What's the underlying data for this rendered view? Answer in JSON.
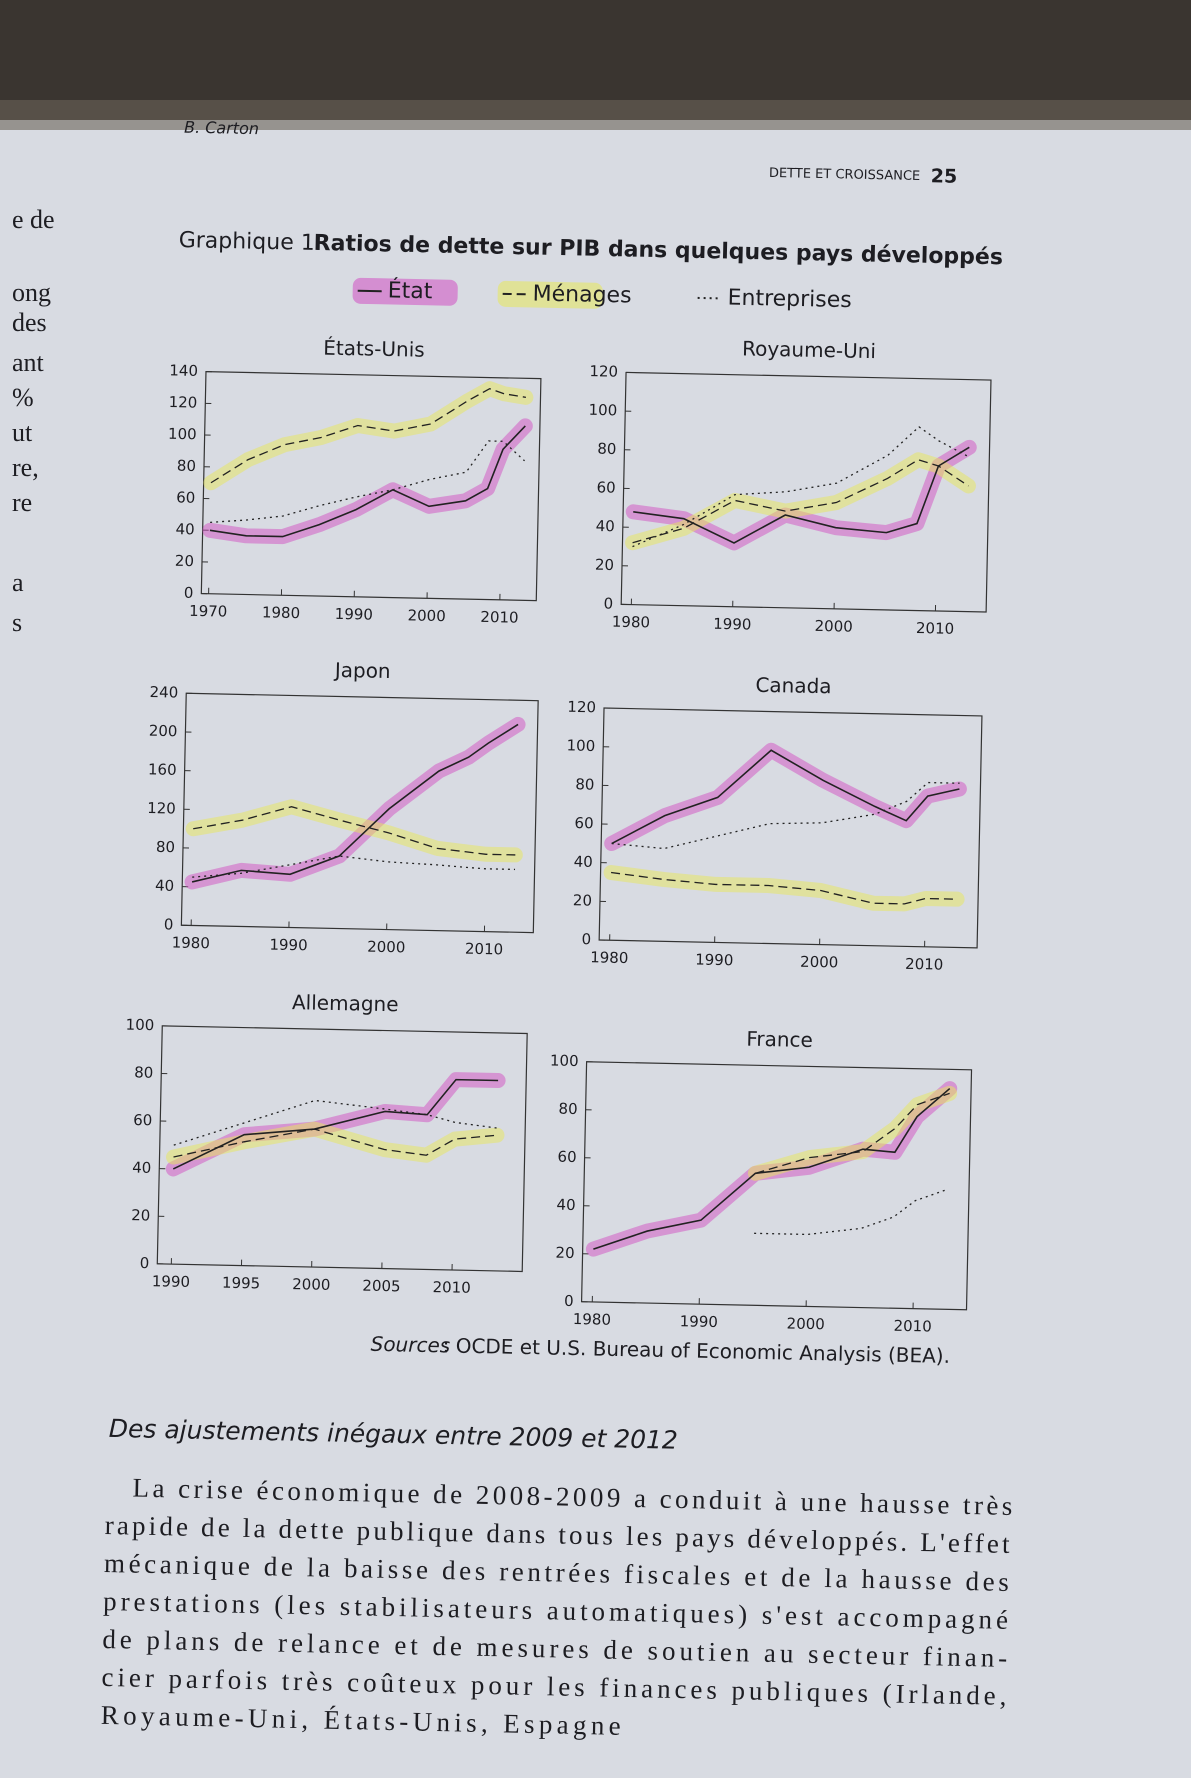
{
  "header": {
    "author": "B. Carton",
    "running_head": "DETTE ET CROISSANCE",
    "page": "25"
  },
  "margin_fragments": [
    "e de",
    "ong",
    "des",
    "ant",
    "%",
    "ut",
    "re,",
    "re",
    "a",
    "s"
  ],
  "figure": {
    "label": "Graphique 1.",
    "title": "Ratios de dette sur PIB dans quelques pays développés"
  },
  "legend": [
    "État",
    "Ménages",
    "Entreprises"
  ],
  "chart_data": [
    {
      "type": "line",
      "title": "États-Unis",
      "x": [
        1970,
        1975,
        1980,
        1985,
        1990,
        1995,
        2000,
        2005,
        2008,
        2010,
        2013
      ],
      "xlim": [
        1969,
        2015
      ],
      "xticks": [
        1970,
        1980,
        1990,
        2000,
        2010
      ],
      "ylim": [
        0,
        140
      ],
      "yticks": [
        0,
        20,
        40,
        60,
        80,
        100,
        120,
        140
      ],
      "series": [
        {
          "style": "solid",
          "color": "#222",
          "highlight": "#d24fc2",
          "values": [
            40,
            37,
            37,
            45,
            55,
            68,
            58,
            62,
            70,
            95,
            110
          ]
        },
        {
          "style": "dashed",
          "color": "#222",
          "highlight": "#e8e85a",
          "values": [
            70,
            85,
            95,
            100,
            108,
            105,
            110,
            125,
            133,
            130,
            128
          ]
        },
        {
          "style": "dotted",
          "color": "#222",
          "values": [
            45,
            47,
            50,
            57,
            63,
            68,
            75,
            80,
            100,
            100,
            88
          ]
        }
      ]
    },
    {
      "type": "line",
      "title": "Royaume-Uni",
      "x": [
        1980,
        1985,
        1990,
        1995,
        2000,
        2005,
        2008,
        2010,
        2013
      ],
      "xlim": [
        1979,
        2015
      ],
      "xticks": [
        1980,
        1990,
        2000,
        2010
      ],
      "ylim": [
        0,
        120
      ],
      "yticks": [
        0,
        20,
        40,
        60,
        80,
        100,
        120
      ],
      "series": [
        {
          "style": "solid",
          "color": "#222",
          "highlight": "#d24fc2",
          "values": [
            48,
            45,
            33,
            48,
            42,
            40,
            45,
            75,
            85
          ]
        },
        {
          "style": "dashed",
          "color": "#222",
          "highlight": "#e8e85a",
          "values": [
            32,
            40,
            55,
            50,
            55,
            68,
            78,
            75,
            65
          ]
        },
        {
          "style": "dotted",
          "color": "#222",
          "values": [
            30,
            42,
            58,
            60,
            65,
            80,
            95,
            88,
            80
          ]
        }
      ]
    },
    {
      "type": "line",
      "title": "Japon",
      "x": [
        1980,
        1985,
        1990,
        1995,
        2000,
        2005,
        2008,
        2010,
        2013
      ],
      "xlim": [
        1979,
        2015
      ],
      "xticks": [
        1980,
        1990,
        2000,
        2010
      ],
      "ylim": [
        0,
        240
      ],
      "yticks": [
        0,
        40,
        80,
        120,
        160,
        200,
        240
      ],
      "series": [
        {
          "style": "solid",
          "color": "#222",
          "highlight": "#d24fc2",
          "values": [
            45,
            58,
            55,
            75,
            125,
            165,
            180,
            195,
            215
          ]
        },
        {
          "style": "dashed",
          "color": "#222",
          "highlight": "#e8e85a",
          "values": [
            100,
            110,
            125,
            112,
            100,
            85,
            82,
            80,
            80
          ]
        },
        {
          "style": "dotted",
          "color": "#222",
          "values": [
            50,
            55,
            65,
            75,
            70,
            68,
            66,
            65,
            65
          ]
        }
      ]
    },
    {
      "type": "line",
      "title": "Canada",
      "x": [
        1980,
        1985,
        1990,
        1995,
        2000,
        2005,
        2008,
        2010,
        2013
      ],
      "xlim": [
        1979,
        2015
      ],
      "xticks": [
        1980,
        1990,
        2000,
        2010
      ],
      "ylim": [
        0,
        120
      ],
      "yticks": [
        0,
        20,
        40,
        60,
        80,
        100,
        120
      ],
      "series": [
        {
          "style": "solid",
          "color": "#222",
          "highlight": "#d24fc2",
          "values": [
            50,
            65,
            75,
            100,
            85,
            72,
            65,
            78,
            82
          ]
        },
        {
          "style": "dashed",
          "color": "#222",
          "highlight": "#e8e85a",
          "values": [
            35,
            32,
            30,
            30,
            28,
            22,
            22,
            25,
            25
          ]
        },
        {
          "style": "dotted",
          "color": "#222",
          "values": [
            50,
            48,
            55,
            62,
            63,
            68,
            75,
            85,
            85
          ]
        }
      ]
    },
    {
      "type": "line",
      "title": "Allemagne",
      "x": [
        1990,
        1995,
        2000,
        2005,
        2008,
        2010,
        2013
      ],
      "xlim": [
        1989,
        2015
      ],
      "xticks": [
        1990,
        1995,
        2000,
        2005,
        2010
      ],
      "ylim": [
        0,
        100
      ],
      "yticks": [
        0,
        20,
        40,
        60,
        80,
        100
      ],
      "series": [
        {
          "style": "solid",
          "color": "#222",
          "highlight": "#d24fc2",
          "values": [
            40,
            55,
            58,
            66,
            65,
            80,
            80
          ]
        },
        {
          "style": "dashed",
          "color": "#222",
          "highlight": "#e8e85a",
          "values": [
            45,
            52,
            58,
            50,
            48,
            55,
            57
          ]
        },
        {
          "style": "dotted",
          "color": "#222",
          "values": [
            50,
            60,
            70,
            67,
            65,
            62,
            60
          ]
        }
      ]
    },
    {
      "type": "line",
      "title": "France",
      "x": [
        1980,
        1985,
        1990,
        1995,
        2000,
        2005,
        2008,
        2010,
        2013
      ],
      "xlim": [
        1979,
        2015
      ],
      "xticks": [
        1980,
        1990,
        2000,
        2010
      ],
      "ylim": [
        0,
        100
      ],
      "yticks": [
        0,
        20,
        40,
        60,
        80,
        100
      ],
      "series": [
        {
          "style": "solid",
          "color": "#222",
          "highlight": "#d24fc2",
          "values": [
            22,
            30,
            35,
            55,
            58,
            66,
            65,
            80,
            92
          ]
        },
        {
          "style": "dashed",
          "color": "#222",
          "highlight": "#e8e85a",
          "values": [
            null,
            null,
            null,
            55,
            62,
            65,
            75,
            85,
            90
          ]
        },
        {
          "style": "dotted",
          "color": "#222",
          "values": [
            null,
            null,
            null,
            30,
            30,
            33,
            38,
            45,
            50
          ]
        }
      ]
    }
  ],
  "source": {
    "label": "Sources",
    "text": ": OCDE et U.S. Bureau of Economic Analysis (BEA)."
  },
  "section": {
    "heading": "Des ajustements inégaux entre 2009 et 2012",
    "lines": [
      "La crise économique de 2008-2009 a conduit à une hausse très",
      "rapide de la dette publique dans tous les pays développés. L'effet",
      "mécanique de la baisse des rentrées fiscales et de la hausse des",
      "prestations (les stabilisateurs automatiques) s'est accompagné",
      "de plans de relance et de mesures de soutien au secteur finan-",
      "cier parfois très coûteux pour les finances publiques (Irlande,",
      "Royaume-Uni, États-Unis, Espagne"
    ]
  }
}
